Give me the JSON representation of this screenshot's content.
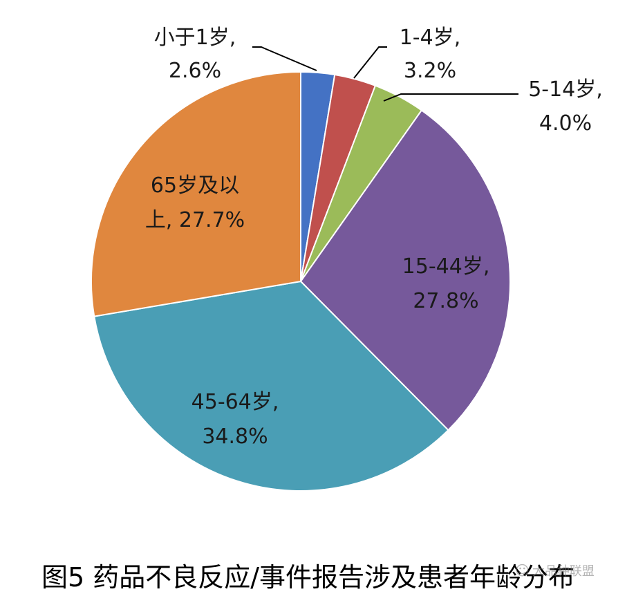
{
  "chart_data": {
    "type": "pie",
    "title": "",
    "categories": [
      "小于1岁",
      "1-4岁",
      "5-14岁",
      "15-44岁",
      "45-64岁",
      "65岁及以上"
    ],
    "values": [
      2.6,
      3.2,
      4.0,
      27.8,
      34.8,
      27.7
    ],
    "unit": "%",
    "colors": [
      "#4472C4",
      "#C0504D",
      "#9BBB59",
      "#76599B",
      "#4A9EB5",
      "#E0873E"
    ],
    "data_labels": [
      [
        "小于1岁,",
        "2.6%"
      ],
      [
        "1-4岁,",
        "3.2%"
      ],
      [
        "5-14岁,",
        "4.0%"
      ],
      [
        "15-44岁,",
        "27.8%"
      ],
      [
        "45-64岁,",
        "34.8%"
      ],
      [
        "65岁及以",
        "上, 27.7%"
      ]
    ],
    "legend": "none"
  },
  "caption": "图5 药品不良反应/事件报告涉及患者年龄分布",
  "watermark": {
    "icon": "wechat-icon",
    "text": "大品种联盟"
  }
}
